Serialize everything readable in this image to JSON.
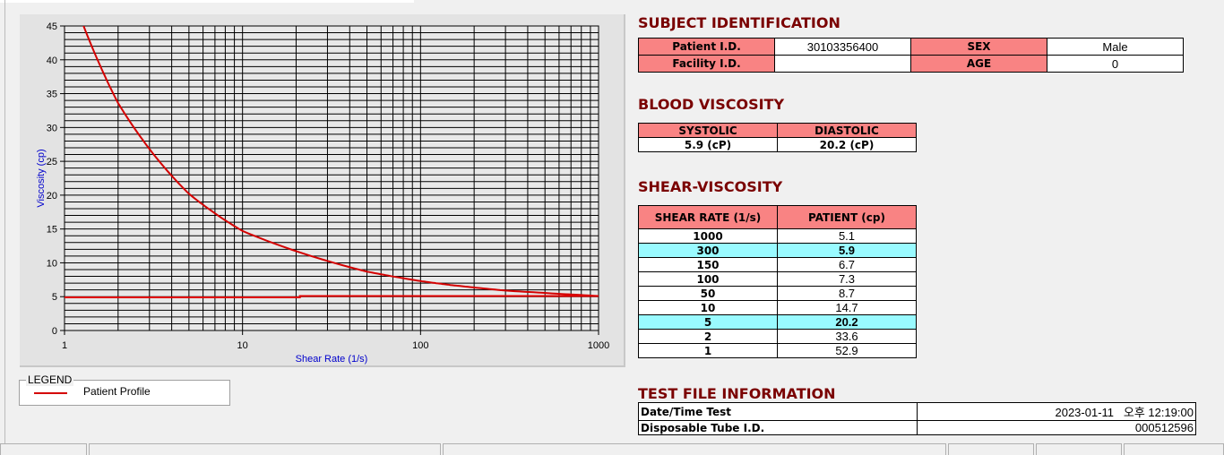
{
  "chart_data": {
    "type": "line",
    "xlabel": "Shear Rate (1/s)",
    "ylabel": "Viscosity (cp)",
    "xscale": "log",
    "xlim": [
      1,
      1000
    ],
    "ylim": [
      0,
      45
    ],
    "x_ticks": [
      "1",
      "10",
      "100",
      "1000"
    ],
    "y_ticks": [
      "0",
      "5",
      "10",
      "15",
      "20",
      "25",
      "30",
      "35",
      "40",
      "45"
    ],
    "grid": true,
    "legend_placement": "bottom-left",
    "series": [
      {
        "name": "Patient Profile",
        "color": "#d40000",
        "points": [
          [
            1,
            52.9
          ],
          [
            2,
            33.6
          ],
          [
            5,
            20.2
          ],
          [
            10,
            14.7
          ],
          [
            50,
            8.7
          ],
          [
            100,
            7.3
          ],
          [
            150,
            6.7
          ],
          [
            300,
            5.9
          ],
          [
            1000,
            5.1
          ]
        ]
      },
      {
        "color": "#e00000",
        "points": [
          [
            1,
            4.9
          ],
          [
            21,
            4.9
          ],
          [
            21,
            5.1
          ],
          [
            1000,
            5.1
          ]
        ]
      }
    ]
  },
  "legend": {
    "title": "LEGEND",
    "items": [
      "Patient Profile"
    ]
  },
  "subject": {
    "title": "SUBJECT IDENTIFICATION",
    "patient_id_label": "Patient I.D.",
    "patient_id": "30103356400",
    "sex_label": "SEX",
    "sex": "Male",
    "facility_id_label": "Facility I.D.",
    "facility_id": "",
    "age_label": "AGE",
    "age": "0"
  },
  "blood_viscosity": {
    "title": "BLOOD VISCOSITY",
    "systolic_label": "SYSTOLIC",
    "diastolic_label": "DIASTOLIC",
    "systolic": "5.9 (cP)",
    "diastolic": "20.2 (cP)"
  },
  "shear_viscosity": {
    "title": "SHEAR-VISCOSITY",
    "headers": [
      "SHEAR RATE (1/s)",
      "PATIENT (cp)"
    ],
    "highlight_color": "#99faff",
    "rows": [
      {
        "rate": "1000",
        "value": "5.1",
        "hl": false
      },
      {
        "rate": "300",
        "value": "5.9",
        "hl": true
      },
      {
        "rate": "150",
        "value": "6.7",
        "hl": false
      },
      {
        "rate": "100",
        "value": "7.3",
        "hl": false
      },
      {
        "rate": "50",
        "value": "8.7",
        "hl": false
      },
      {
        "rate": "10",
        "value": "14.7",
        "hl": false
      },
      {
        "rate": "5",
        "value": "20.2",
        "hl": true
      },
      {
        "rate": "2",
        "value": "33.6",
        "hl": false
      },
      {
        "rate": "1",
        "value": "52.9",
        "hl": false
      }
    ]
  },
  "test_file": {
    "title": "TEST FILE INFORMATION",
    "datetime_label": "Date/Time Test",
    "datetime": "2023-01-11   오후 12:19:00",
    "tube_label": "Disposable Tube I.D.",
    "tube": "000512596"
  }
}
